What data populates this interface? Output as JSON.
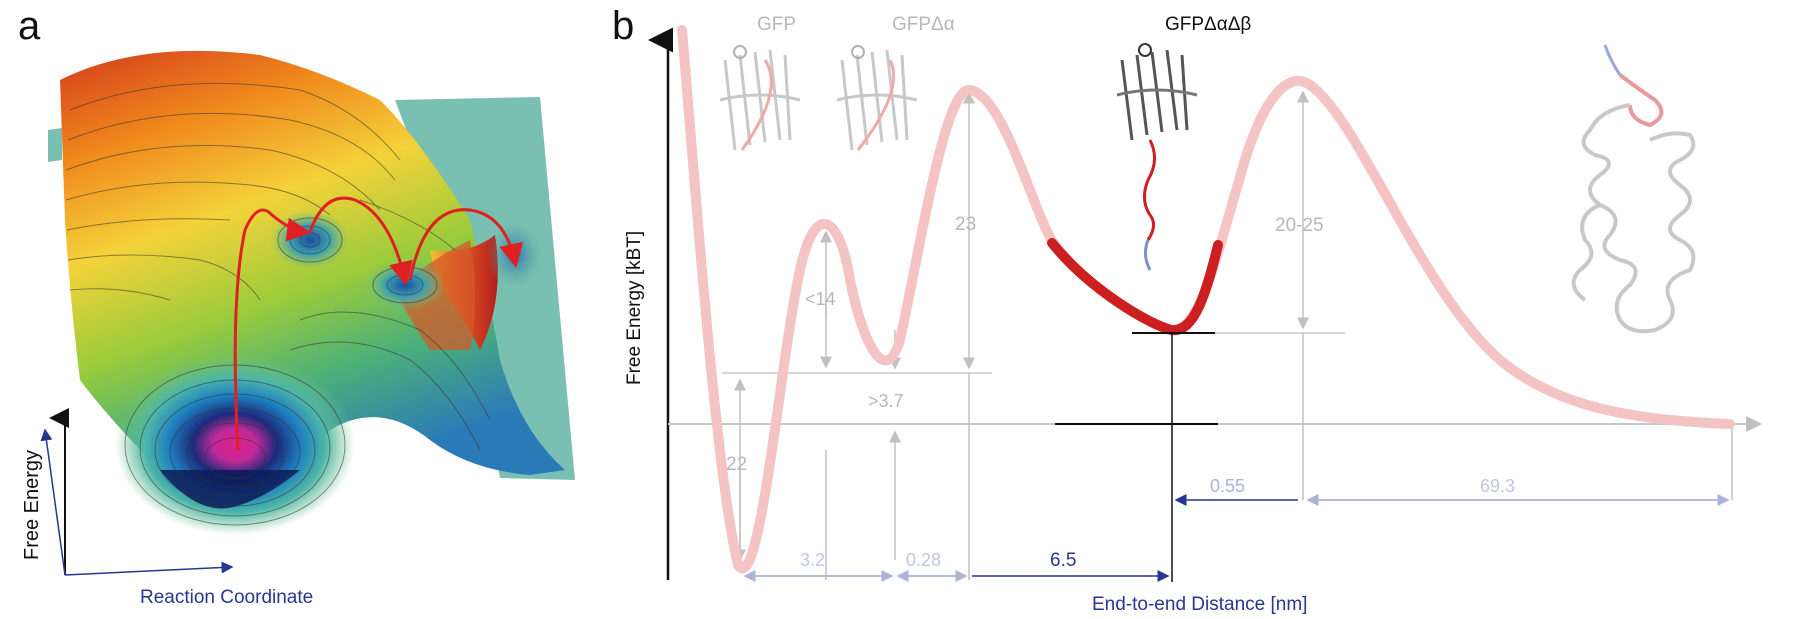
{
  "panel_a": {
    "letter": "a",
    "y_axis_label": "Free Energy",
    "x_axis_label": "Reaction Coordinate"
  },
  "panel_b": {
    "letter": "b",
    "y_axis_label": "Free Energy [kBT]",
    "x_axis_label": "End-to-end Distance [nm]",
    "structure_labels": {
      "gfp": "GFP",
      "gfp_da": "GFPΔα",
      "gfp_dadb": "GFPΔαΔβ"
    },
    "energy_labels": {
      "e22": "22",
      "e14": "<14",
      "e37": ">3.7",
      "e23": "23",
      "e2025": "20-25"
    },
    "distance_labels": {
      "d32": "3.2",
      "d028": "0.28",
      "d65": "6.5",
      "d055": "0.55",
      "d693": "69.3"
    }
  },
  "colors": {
    "curve_light": "#f4c4c4",
    "curve_dark": "#cc1f1f",
    "gray_line": "#c8c8c8",
    "blue_text": "#27378f",
    "light_blue": "#aab4d8",
    "red_arrow": "#e02020"
  }
}
